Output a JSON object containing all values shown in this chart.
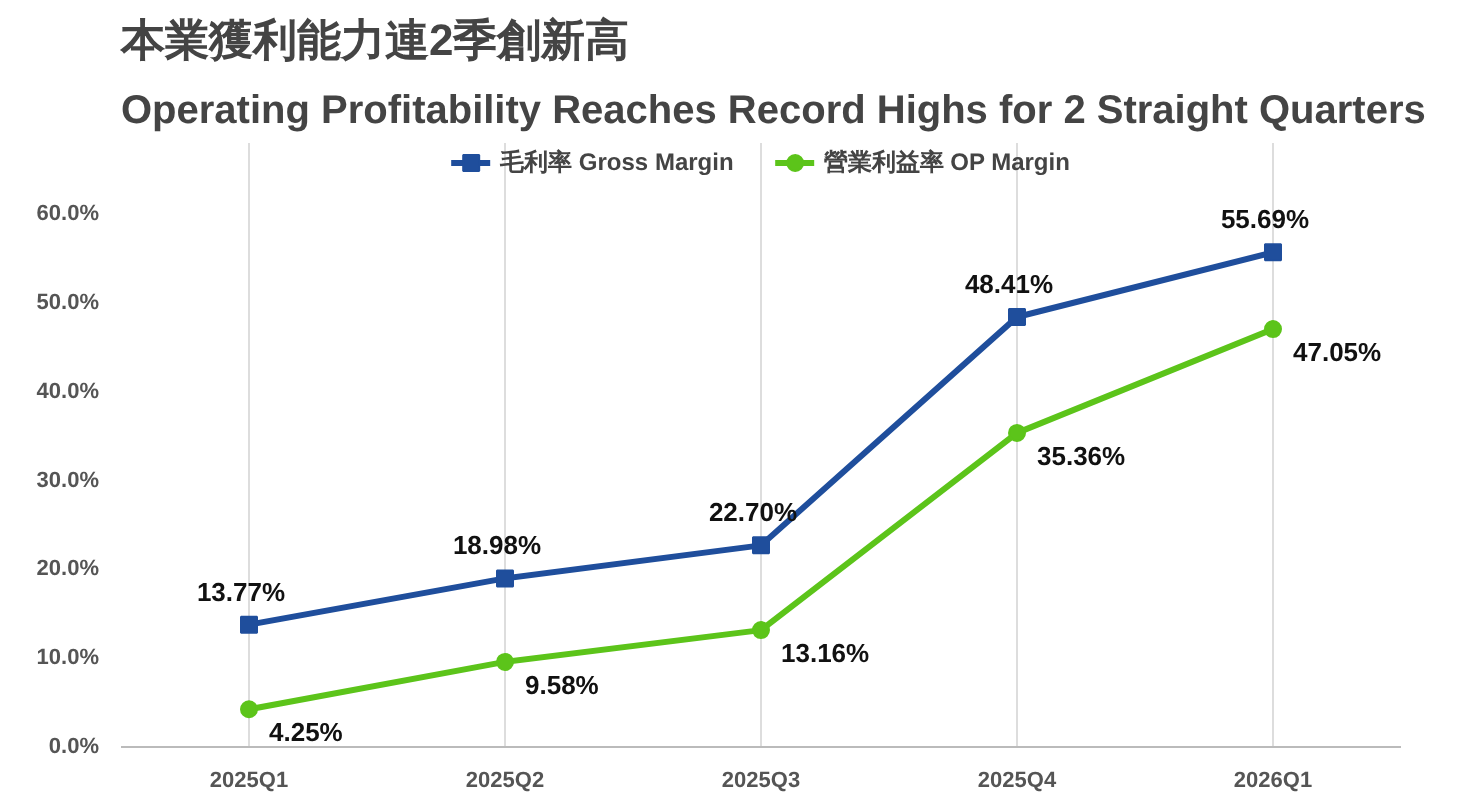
{
  "chart_data": {
    "type": "line",
    "title": "本業獲利能力連2季創新高",
    "subtitle": "Operating Profitability Reaches Record Highs for 2 Straight Quarters",
    "categories": [
      "2025Q1",
      "2025Q2",
      "2025Q3",
      "2025Q4",
      "2026Q1"
    ],
    "series": [
      {
        "name": "毛利率 Gross Margin",
        "color": "#1f4e9c",
        "marker": "square",
        "values": [
          13.77,
          18.98,
          22.7,
          48.41,
          55.69
        ],
        "value_labels": [
          "13.77%",
          "18.98%",
          "22.70%",
          "48.41%",
          "55.69%"
        ]
      },
      {
        "name": "營業利益率 OP Margin",
        "color": "#5cc41a",
        "marker": "circle",
        "values": [
          4.25,
          9.58,
          13.16,
          35.36,
          47.05
        ],
        "value_labels": [
          "4.25%",
          "9.58%",
          "13.16%",
          "35.36%",
          "47.05%"
        ]
      }
    ],
    "ylim": [
      0,
      60
    ],
    "yticks": [
      {
        "value": 0,
        "label": "0.0%"
      },
      {
        "value": 10,
        "label": "10.0%"
      },
      {
        "value": 20,
        "label": "20.0%"
      },
      {
        "value": 30,
        "label": "30.0%"
      },
      {
        "value": 40,
        "label": "40.0%"
      },
      {
        "value": 50,
        "label": "50.0%"
      },
      {
        "value": 60,
        "label": "60.0%"
      }
    ],
    "grid": "x",
    "legend": "top",
    "line_style": "solid"
  }
}
